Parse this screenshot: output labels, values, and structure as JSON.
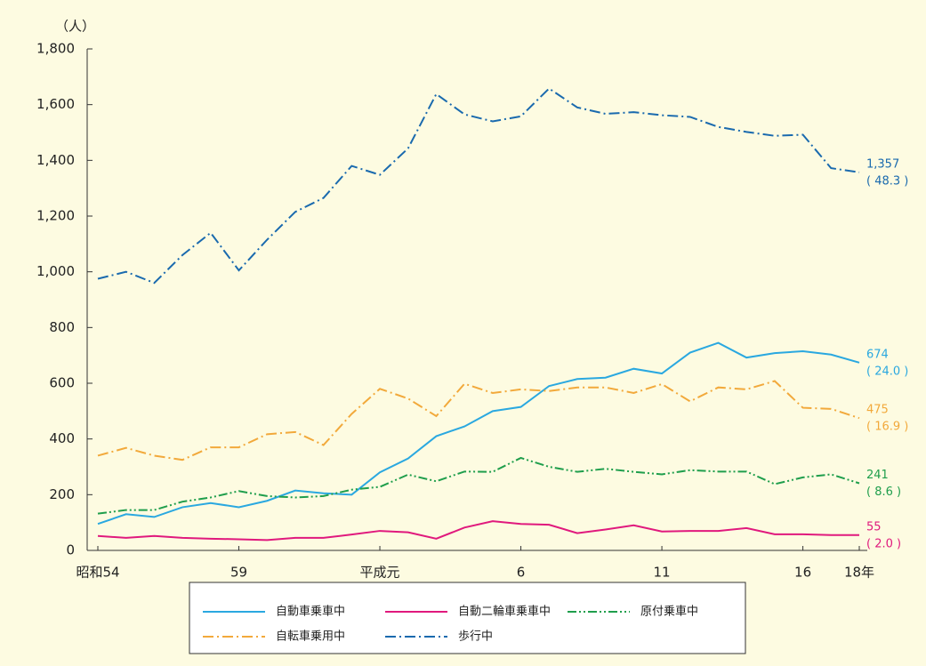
{
  "chart_data": {
    "type": "line",
    "y_label": "（人）",
    "categories": [
      "昭和54",
      null,
      null,
      null,
      null,
      "59",
      null,
      null,
      null,
      null,
      "平成元",
      null,
      null,
      null,
      null,
      "6",
      null,
      null,
      null,
      null,
      "11",
      null,
      null,
      null,
      null,
      "16",
      null,
      "18年"
    ],
    "ylim": [
      0,
      1800
    ],
    "yticks": [
      0,
      200,
      400,
      600,
      800,
      {
        "value": 1000,
        "label": "1,000"
      },
      {
        "value": 1200,
        "label": "1,200"
      },
      {
        "value": 1400,
        "label": "1,400"
      },
      {
        "value": 1600,
        "label": "1,600"
      },
      {
        "value": 1800,
        "label": "1,800"
      }
    ],
    "series": [
      {
        "name": "自動車乗車中",
        "color": "#2aa8e0",
        "line_style": "solid",
        "end_label": "674",
        "share_label": "( 24.0 )",
        "values": [
          95,
          130,
          120,
          155,
          170,
          155,
          178,
          215,
          205,
          200,
          280,
          330,
          410,
          445,
          500,
          515,
          590,
          615,
          620,
          652,
          635,
          710,
          745,
          692,
          708,
          715,
          703,
          674
        ]
      },
      {
        "name": "自動二輪車乗車中",
        "color": "#e0197d",
        "line_style": "solid",
        "end_label": "55",
        "share_label": "( 2.0 )",
        "values": [
          52,
          45,
          52,
          45,
          42,
          40,
          37,
          45,
          45,
          57,
          70,
          65,
          42,
          82,
          105,
          95,
          92,
          62,
          75,
          90,
          68,
          70,
          70,
          80,
          58,
          58,
          55,
          55
        ]
      },
      {
        "name": "原付乗車中",
        "color": "#1f9e4c",
        "line_style": "dash-dot-dot",
        "end_label": "241",
        "share_label": "( 8.6 )",
        "values": [
          132,
          145,
          145,
          175,
          190,
          213,
          195,
          190,
          195,
          218,
          228,
          272,
          248,
          283,
          282,
          332,
          300,
          282,
          293,
          282,
          273,
          288,
          283,
          283,
          238,
          262,
          273,
          241
        ]
      },
      {
        "name": "自転車乗用中",
        "color": "#f2a93b",
        "line_style": "dash-dot",
        "end_label": "475",
        "share_label": "( 16.9 )",
        "values": [
          340,
          368,
          340,
          325,
          370,
          370,
          417,
          425,
          378,
          490,
          580,
          545,
          482,
          598,
          565,
          578,
          572,
          585,
          585,
          565,
          597,
          535,
          585,
          578,
          608,
          512,
          508,
          475
        ]
      },
      {
        "name": "歩行中",
        "color": "#1a6aae",
        "line_style": "dash-dot",
        "end_label": "1,357",
        "share_label": "( 48.3 )",
        "values": [
          975,
          1000,
          960,
          1060,
          1140,
          1005,
          1115,
          1215,
          1265,
          1380,
          1348,
          1443,
          1638,
          1565,
          1540,
          1558,
          1658,
          1590,
          1567,
          1573,
          1562,
          1556,
          1520,
          1502,
          1488,
          1492,
          1372,
          1357
        ]
      }
    ]
  }
}
